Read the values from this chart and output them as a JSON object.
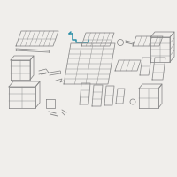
{
  "bg_color": "#f0eeeb",
  "line_color": "#888888",
  "highlight_color": "#2b8fa8",
  "lw": 0.55,
  "hlw": 1.1,
  "figsize": [
    2.0,
    2.0
  ],
  "dpi": 100
}
